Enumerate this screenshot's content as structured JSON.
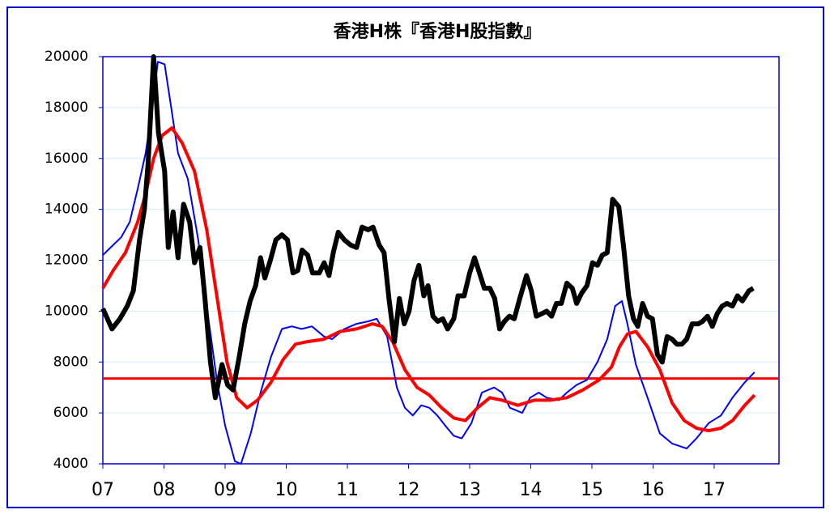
{
  "chart_data": {
    "type": "line",
    "title": "香港H株『香港H股指數』",
    "xlim": [
      2007,
      2018.06
    ],
    "xticks": [
      {
        "value": 2007,
        "label": "07"
      },
      {
        "value": 2008,
        "label": "08"
      },
      {
        "value": 2009,
        "label": "09"
      },
      {
        "value": 2010,
        "label": "10"
      },
      {
        "value": 2011,
        "label": "11"
      },
      {
        "value": 2012,
        "label": "12"
      },
      {
        "value": 2013,
        "label": "13"
      },
      {
        "value": 2014,
        "label": "14"
      },
      {
        "value": 2015,
        "label": "15"
      },
      {
        "value": 2016,
        "label": "16"
      },
      {
        "value": 2017,
        "label": "17"
      }
    ],
    "ylim": [
      4000,
      20000
    ],
    "yticks": [
      4000,
      6000,
      8000,
      10000,
      12000,
      14000,
      16000,
      18000,
      20000
    ],
    "grid": true,
    "reference_line": {
      "value": 7350,
      "color": "#ff0000"
    },
    "series": [
      {
        "color": "#0000ff",
        "width": 2,
        "x": [
          2007.0,
          2007.17,
          2007.3,
          2007.44,
          2007.57,
          2007.7,
          2007.81,
          2007.9,
          2008.01,
          2008.1,
          2008.23,
          2008.39,
          2008.56,
          2008.71,
          2008.87,
          2009.0,
          2009.16,
          2009.26,
          2009.42,
          2009.58,
          2009.75,
          2009.93,
          2010.09,
          2010.25,
          2010.42,
          2010.62,
          2010.75,
          2010.95,
          2011.15,
          2011.34,
          2011.48,
          2011.65,
          2011.81,
          2011.94,
          2012.07,
          2012.21,
          2012.34,
          2012.47,
          2012.6,
          2012.74,
          2012.87,
          2013.03,
          2013.2,
          2013.4,
          2013.53,
          2013.66,
          2013.86,
          2013.99,
          2014.13,
          2014.26,
          2014.46,
          2014.59,
          2014.75,
          2014.92,
          2015.09,
          2015.25,
          2015.38,
          2015.49,
          2015.58,
          2015.72,
          2015.91,
          2016.11,
          2016.31,
          2016.55,
          2016.71,
          2016.91,
          2017.11,
          2017.3,
          2017.5,
          2017.66
        ],
        "values": [
          12200,
          12600,
          12900,
          13500,
          14800,
          16200,
          18000,
          19800,
          19700,
          18300,
          16200,
          15200,
          12800,
          10000,
          7200,
          5500,
          4100,
          4000,
          5200,
          6800,
          8200,
          9300,
          9400,
          9300,
          9400,
          9000,
          8900,
          9300,
          9500,
          9600,
          9700,
          9000,
          7000,
          6200,
          5900,
          6300,
          6200,
          5900,
          5500,
          5100,
          5000,
          5600,
          6800,
          7000,
          6800,
          6200,
          6000,
          6600,
          6800,
          6600,
          6500,
          6800,
          7100,
          7300,
          8000,
          8900,
          10200,
          10400,
          9500,
          7900,
          6600,
          5200,
          4800,
          4600,
          5000,
          5600,
          5900,
          6600,
          7200,
          7600
        ]
      },
      {
        "color": "#ff0000",
        "width": 4,
        "x": [
          2007.0,
          2007.17,
          2007.37,
          2007.57,
          2007.7,
          2007.83,
          2007.97,
          2008.13,
          2008.3,
          2008.5,
          2008.7,
          2008.87,
          2009.03,
          2009.19,
          2009.36,
          2009.53,
          2009.75,
          2009.95,
          2010.15,
          2010.35,
          2010.62,
          2010.88,
          2011.15,
          2011.41,
          2011.57,
          2011.74,
          2011.94,
          2012.14,
          2012.34,
          2012.54,
          2012.74,
          2012.93,
          2013.13,
          2013.33,
          2013.53,
          2013.79,
          2014.06,
          2014.32,
          2014.59,
          2014.85,
          2015.12,
          2015.32,
          2015.45,
          2015.58,
          2015.72,
          2015.91,
          2016.11,
          2016.31,
          2016.51,
          2016.71,
          2016.91,
          2017.11,
          2017.3,
          2017.5,
          2017.66
        ],
        "values": [
          10900,
          11600,
          12300,
          13500,
          14600,
          16000,
          16900,
          17200,
          16600,
          15500,
          13200,
          10500,
          8000,
          6600,
          6200,
          6500,
          7200,
          8100,
          8700,
          8800,
          8900,
          9200,
          9300,
          9500,
          9400,
          8800,
          7700,
          7000,
          6700,
          6200,
          5800,
          5700,
          6200,
          6600,
          6500,
          6300,
          6500,
          6500,
          6600,
          6900,
          7300,
          7800,
          8600,
          9100,
          9200,
          8600,
          7700,
          6400,
          5700,
          5400,
          5300,
          5400,
          5700,
          6300,
          6700
        ]
      },
      {
        "color": "#000000",
        "width": 6,
        "x": [
          2007.0,
          2007.15,
          2007.28,
          2007.4,
          2007.5,
          2007.6,
          2007.68,
          2007.74,
          2007.83,
          2007.91,
          2008.01,
          2008.07,
          2008.15,
          2008.23,
          2008.32,
          2008.42,
          2008.5,
          2008.59,
          2008.67,
          2008.76,
          2008.84,
          2008.95,
          2009.04,
          2009.13,
          2009.23,
          2009.32,
          2009.41,
          2009.5,
          2009.58,
          2009.65,
          2009.74,
          2009.83,
          2009.93,
          2010.02,
          2010.11,
          2010.19,
          2010.26,
          2010.35,
          2010.43,
          2010.54,
          2010.62,
          2010.7,
          2010.77,
          2010.85,
          2010.95,
          2011.05,
          2011.15,
          2011.24,
          2011.34,
          2011.42,
          2011.52,
          2011.6,
          2011.68,
          2011.77,
          2011.85,
          2011.93,
          2012.01,
          2012.09,
          2012.17,
          2012.25,
          2012.32,
          2012.4,
          2012.48,
          2012.56,
          2012.64,
          2012.74,
          2012.81,
          2012.91,
          2013.0,
          2013.08,
          2013.16,
          2013.24,
          2013.33,
          2013.41,
          2013.49,
          2013.57,
          2013.65,
          2013.73,
          2013.82,
          2013.93,
          2014.01,
          2014.09,
          2014.18,
          2014.26,
          2014.34,
          2014.42,
          2014.5,
          2014.59,
          2014.68,
          2014.75,
          2014.83,
          2014.92,
          2015.01,
          2015.09,
          2015.17,
          2015.25,
          2015.34,
          2015.44,
          2015.52,
          2015.6,
          2015.68,
          2015.75,
          2015.83,
          2015.91,
          2015.99,
          2016.07,
          2016.15,
          2016.23,
          2016.31,
          2016.39,
          2016.47,
          2016.55,
          2016.64,
          2016.74,
          2016.81,
          2016.89,
          2016.97,
          2017.05,
          2017.13,
          2017.21,
          2017.3,
          2017.38,
          2017.46,
          2017.57,
          2017.64
        ],
        "values": [
          10100,
          9300,
          9700,
          10200,
          10800,
          12800,
          14000,
          15800,
          20000,
          17000,
          15500,
          12500,
          13900,
          12100,
          14200,
          13500,
          11900,
          12500,
          10500,
          8000,
          6600,
          7900,
          7100,
          6900,
          8200,
          9500,
          10400,
          11000,
          12100,
          11300,
          12000,
          12800,
          13000,
          12800,
          11500,
          11600,
          12400,
          12200,
          11500,
          11500,
          11900,
          11400,
          12300,
          13100,
          12800,
          12600,
          12500,
          13300,
          13200,
          13300,
          12600,
          12300,
          10500,
          8800,
          10500,
          9500,
          10000,
          11200,
          11800,
          10600,
          11000,
          9800,
          9600,
          9700,
          9300,
          9700,
          10600,
          10600,
          11500,
          12100,
          11500,
          10900,
          10900,
          10500,
          9300,
          9600,
          9800,
          9700,
          10500,
          11400,
          10800,
          9800,
          9900,
          10000,
          9800,
          10300,
          10300,
          11100,
          10900,
          10300,
          10700,
          11000,
          11900,
          11800,
          12200,
          12300,
          14400,
          14100,
          12500,
          10600,
          9700,
          9400,
          10300,
          9800,
          9700,
          8300,
          8000,
          9000,
          8900,
          8700,
          8700,
          8900,
          9500,
          9500,
          9600,
          9800,
          9400,
          9900,
          10200,
          10300,
          10200,
          10600,
          10400,
          10800,
          10900
        ]
      }
    ]
  }
}
